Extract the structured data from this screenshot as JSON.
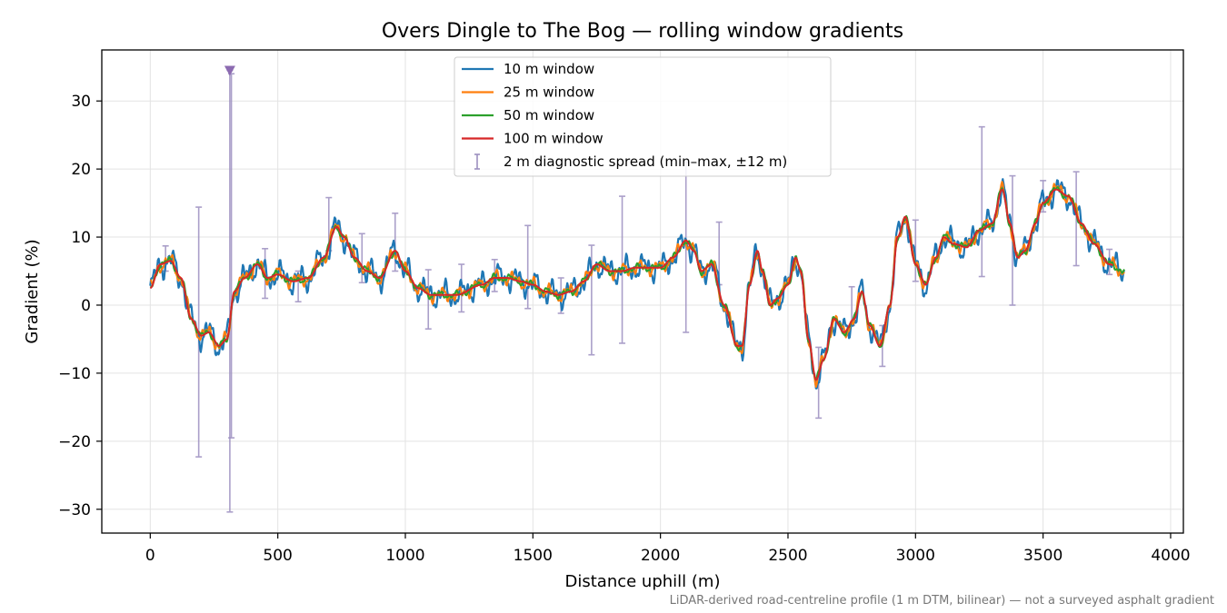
{
  "chart_data": {
    "type": "line",
    "title": "Overs Dingle to The Bog — rolling window gradients",
    "xlabel": "Distance uphill (m)",
    "ylabel": "Gradient (%)",
    "xlim": [
      -190,
      4050
    ],
    "ylim": [
      -33.5,
      37.5
    ],
    "xticks": [
      0,
      500,
      1000,
      1500,
      2000,
      2500,
      3000,
      3500,
      4000
    ],
    "xtick_labels": [
      "0",
      "500",
      "1000",
      "1500",
      "2000",
      "2500",
      "3000",
      "3500",
      "4000"
    ],
    "yticks": [
      -30,
      -20,
      -10,
      0,
      10,
      20,
      30
    ],
    "ytick_labels": [
      "−30",
      "−20",
      "−10",
      "0",
      "10",
      "20",
      "30"
    ],
    "grid": true,
    "legend_position": "upper-center",
    "footnote": "LiDAR-derived road-centreline profile (1 m DTM, bilinear) — not a surveyed asphalt gradient",
    "base_profile": [
      [
        0,
        2.5
      ],
      [
        40,
        6
      ],
      [
        80,
        6.5
      ],
      [
        120,
        4
      ],
      [
        160,
        -2
      ],
      [
        200,
        -4.5
      ],
      [
        230,
        -4
      ],
      [
        270,
        -6
      ],
      [
        300,
        -5
      ],
      [
        330,
        2
      ],
      [
        370,
        4
      ],
      [
        420,
        6
      ],
      [
        460,
        4
      ],
      [
        500,
        4.5
      ],
      [
        560,
        3.5
      ],
      [
        620,
        4
      ],
      [
        680,
        7
      ],
      [
        730,
        11.5
      ],
      [
        760,
        10
      ],
      [
        800,
        7
      ],
      [
        850,
        5
      ],
      [
        900,
        4
      ],
      [
        960,
        8
      ],
      [
        1000,
        5
      ],
      [
        1050,
        2.5
      ],
      [
        1100,
        1.5
      ],
      [
        1200,
        1.5
      ],
      [
        1300,
        3
      ],
      [
        1350,
        4
      ],
      [
        1400,
        4
      ],
      [
        1450,
        3.5
      ],
      [
        1500,
        3
      ],
      [
        1550,
        2
      ],
      [
        1600,
        1.5
      ],
      [
        1650,
        2
      ],
      [
        1700,
        3.5
      ],
      [
        1750,
        6
      ],
      [
        1800,
        5
      ],
      [
        1850,
        5
      ],
      [
        1900,
        5.5
      ],
      [
        2000,
        5.5
      ],
      [
        2050,
        7
      ],
      [
        2100,
        9.5
      ],
      [
        2130,
        8
      ],
      [
        2160,
        5
      ],
      [
        2200,
        6
      ],
      [
        2250,
        0
      ],
      [
        2300,
        -6
      ],
      [
        2320,
        -6
      ],
      [
        2350,
        3
      ],
      [
        2380,
        8
      ],
      [
        2400,
        5
      ],
      [
        2430,
        0
      ],
      [
        2460,
        1
      ],
      [
        2500,
        3
      ],
      [
        2530,
        7
      ],
      [
        2550,
        5
      ],
      [
        2580,
        -5
      ],
      [
        2610,
        -11
      ],
      [
        2640,
        -8
      ],
      [
        2680,
        -2
      ],
      [
        2720,
        -4
      ],
      [
        2760,
        -2
      ],
      [
        2790,
        2
      ],
      [
        2820,
        -3
      ],
      [
        2860,
        -6
      ],
      [
        2900,
        0
      ],
      [
        2930,
        10
      ],
      [
        2960,
        13
      ],
      [
        3000,
        6
      ],
      [
        3040,
        3
      ],
      [
        3080,
        7
      ],
      [
        3110,
        10
      ],
      [
        3150,
        9
      ],
      [
        3200,
        8.5
      ],
      [
        3250,
        11
      ],
      [
        3300,
        12
      ],
      [
        3340,
        17
      ],
      [
        3370,
        12
      ],
      [
        3400,
        7
      ],
      [
        3430,
        8
      ],
      [
        3470,
        12
      ],
      [
        3500,
        15
      ],
      [
        3550,
        17
      ],
      [
        3600,
        16
      ],
      [
        3650,
        12
      ],
      [
        3700,
        9
      ],
      [
        3760,
        6
      ],
      [
        3820,
        5
      ]
    ],
    "series": [
      {
        "name": "10 m window",
        "color": "#1f77b4",
        "window_m": 10,
        "noise": 2.2,
        "lag_m": 0
      },
      {
        "name": "25 m window",
        "color": "#ff7f0e",
        "window_m": 25,
        "noise": 1.2,
        "lag_m": 0
      },
      {
        "name": "50 m window",
        "color": "#2ca02c",
        "window_m": 50,
        "noise": 0.6,
        "lag_m": 0
      },
      {
        "name": "100 m window",
        "color": "#d62728",
        "window_m": 100,
        "noise": 0.0,
        "lag_m": 0
      }
    ],
    "diagnostic_spread": {
      "name": "2 m diagnostic spread (min–max, ±12 m)",
      "color": "#9c8fc0",
      "bars": [
        {
          "x": 60,
          "lo": 5,
          "hi": 8.7
        },
        {
          "x": 190,
          "lo": -22.3,
          "hi": 14.4
        },
        {
          "x": 312,
          "lo": -30.4,
          "hi": 34.5
        },
        {
          "x": 318,
          "lo": -19.5,
          "hi": 34.0
        },
        {
          "x": 450,
          "lo": 1,
          "hi": 8.3
        },
        {
          "x": 580,
          "lo": 0.5,
          "hi": 5
        },
        {
          "x": 700,
          "lo": 8,
          "hi": 15.8
        },
        {
          "x": 830,
          "lo": 3.3,
          "hi": 10.5
        },
        {
          "x": 960,
          "lo": 5,
          "hi": 13.5
        },
        {
          "x": 1090,
          "lo": -3.5,
          "hi": 5.2
        },
        {
          "x": 1220,
          "lo": -1,
          "hi": 6
        },
        {
          "x": 1350,
          "lo": 2,
          "hi": 6.7
        },
        {
          "x": 1480,
          "lo": -0.5,
          "hi": 11.7
        },
        {
          "x": 1610,
          "lo": -1.2,
          "hi": 4
        },
        {
          "x": 1730,
          "lo": -7.3,
          "hi": 8.8
        },
        {
          "x": 1850,
          "lo": -5.6,
          "hi": 16
        },
        {
          "x": 2100,
          "lo": -4,
          "hi": 21
        },
        {
          "x": 2230,
          "lo": 3,
          "hi": 12.2
        },
        {
          "x": 2620,
          "lo": -16.6,
          "hi": -6.2
        },
        {
          "x": 2750,
          "lo": -3,
          "hi": 2.7
        },
        {
          "x": 2870,
          "lo": -9,
          "hi": -3
        },
        {
          "x": 3000,
          "lo": 3.5,
          "hi": 12.5
        },
        {
          "x": 3260,
          "lo": 4.2,
          "hi": 26.2
        },
        {
          "x": 3380,
          "lo": 0,
          "hi": 19
        },
        {
          "x": 3500,
          "lo": 13.7,
          "hi": 18.3
        },
        {
          "x": 3630,
          "lo": 5.8,
          "hi": 19.6
        },
        {
          "x": 3760,
          "lo": 4.5,
          "hi": 8.2
        }
      ],
      "clipped_marker": {
        "x": 312,
        "y": 34.5
      }
    }
  }
}
